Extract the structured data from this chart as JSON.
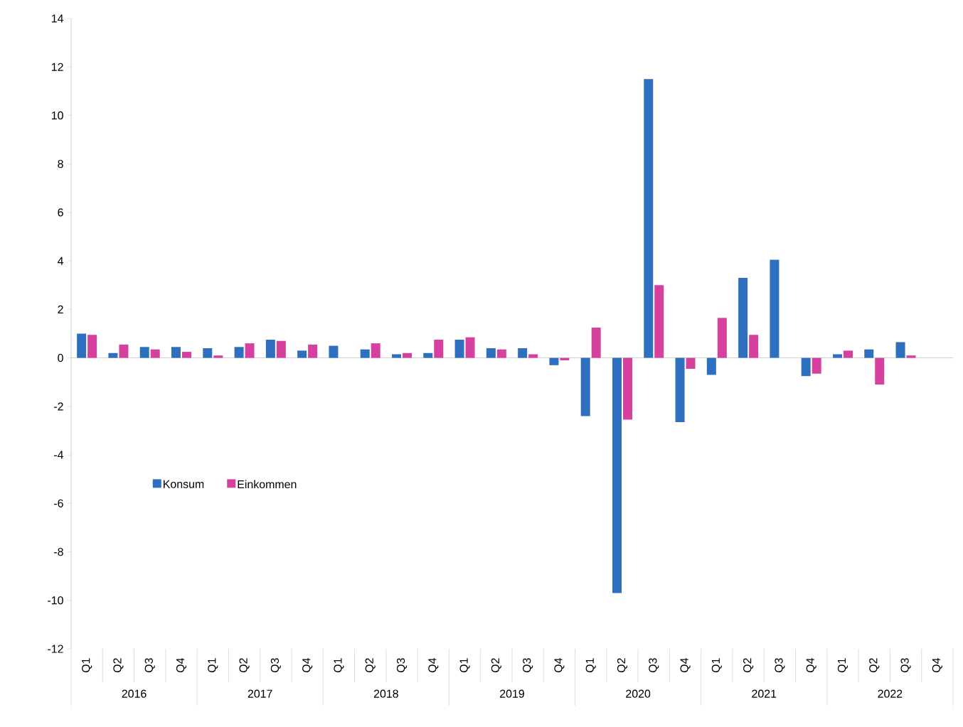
{
  "chart_data": {
    "type": "bar",
    "categories": [
      "Q1",
      "Q2",
      "Q3",
      "Q4",
      "Q1",
      "Q2",
      "Q3",
      "Q4",
      "Q1",
      "Q2",
      "Q3",
      "Q4",
      "Q1",
      "Q2",
      "Q3",
      "Q4",
      "Q1",
      "Q2",
      "Q3",
      "Q4",
      "Q1",
      "Q2",
      "Q3",
      "Q4",
      "Q1",
      "Q2",
      "Q3",
      "Q4"
    ],
    "series": [
      {
        "name": "Konsum",
        "color": "#2e6fc0",
        "values": [
          1.0,
          0.2,
          0.45,
          0.45,
          0.4,
          0.45,
          0.75,
          0.3,
          0.5,
          0.35,
          0.15,
          0.2,
          0.75,
          0.4,
          0.4,
          -0.3,
          -2.4,
          -9.7,
          11.5,
          -2.65,
          -0.7,
          3.3,
          4.05,
          -0.75,
          0.15,
          0.35,
          0.65,
          null
        ]
      },
      {
        "name": "Einkommen",
        "color": "#d6409e",
        "values": [
          0.95,
          0.55,
          0.35,
          0.25,
          0.1,
          0.6,
          0.7,
          0.55,
          0,
          0.6,
          0.2,
          0.75,
          0.85,
          0.35,
          0.15,
          -0.1,
          1.25,
          -2.55,
          3.0,
          -0.45,
          1.65,
          0.95,
          0,
          -0.65,
          0.3,
          -1.1,
          0.1,
          null
        ]
      }
    ],
    "annotations": [
      "2016",
      "2017",
      "2018",
      "2019",
      "2020",
      "2021",
      "2022"
    ],
    "ylim": [
      -12,
      14
    ],
    "yticks": [
      -12,
      -10,
      -8,
      -6,
      -4,
      -2,
      0,
      2,
      4,
      6,
      8,
      10,
      12,
      14
    ],
    "legend": "bottom left"
  }
}
